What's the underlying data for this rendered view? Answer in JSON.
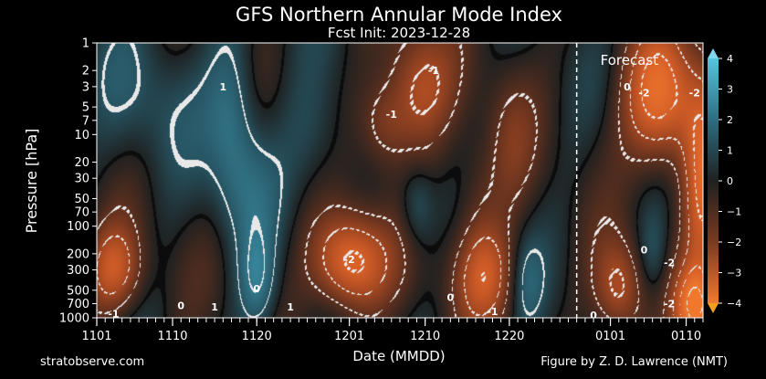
{
  "chart_data": {
    "type": "heatmap",
    "title": "GFS Northern Annular Mode Index",
    "subtitle": "Fcst Init: 2023-12-28",
    "xlabel": "Date (MMDD)",
    "ylabel": "Pressure [hPa]",
    "x_tick_labels": [
      "1101",
      "1110",
      "1120",
      "1201",
      "1210",
      "1220",
      "0101",
      "0110"
    ],
    "x_tick_dates": [
      "2023-11-01",
      "2023-11-10",
      "2023-11-20",
      "2023-12-01",
      "2023-12-10",
      "2023-12-20",
      "2024-01-01",
      "2024-01-10"
    ],
    "x_range": [
      "2023-11-01",
      "2024-01-12"
    ],
    "y_scale": "log",
    "y_inverted": true,
    "y_ticks": [
      1,
      2,
      3,
      5,
      7,
      10,
      20,
      30,
      50,
      70,
      100,
      200,
      300,
      500,
      700,
      1000
    ],
    "y_range": [
      1,
      1000
    ],
    "forecast_label": "Forecast",
    "forecast_date": "2023-12-28",
    "colorbar": {
      "ticks": [
        4,
        3,
        2,
        1,
        0,
        -1,
        -2,
        -3,
        -4
      ],
      "tick_labels": [
        "4",
        "3",
        "2",
        "1",
        "0",
        "−1",
        "−2",
        "−3",
        "−4"
      ],
      "range": [
        -4,
        4
      ],
      "colors": {
        "positive_strong": "#3ba3c4",
        "positive": "#2c6e80",
        "neutral": "#1f2020",
        "negative": "#7a3a20",
        "negative_strong": "#e26a2c"
      }
    },
    "contour_labels": [
      {
        "date": "2023-11-16",
        "p": 3,
        "text": "1"
      },
      {
        "date": "2023-12-11",
        "p": 2,
        "text": "-1"
      },
      {
        "date": "2023-12-06",
        "p": 6,
        "text": "-1"
      },
      {
        "date": "2024-01-03",
        "p": 3,
        "text": "0"
      },
      {
        "date": "2024-01-05",
        "p": 3.5,
        "text": "-2"
      },
      {
        "date": "2024-01-11",
        "p": 3.5,
        "text": "-2"
      },
      {
        "date": "2023-12-01",
        "p": 230,
        "text": "-2"
      },
      {
        "date": "2024-01-05",
        "p": 180,
        "text": "0"
      },
      {
        "date": "2024-01-08",
        "p": 250,
        "text": "-2"
      },
      {
        "date": "2023-11-20",
        "p": 480,
        "text": "0"
      },
      {
        "date": "2023-11-11",
        "p": 730,
        "text": "0"
      },
      {
        "date": "2023-11-15",
        "p": 760,
        "text": "1"
      },
      {
        "date": "2023-11-24",
        "p": 760,
        "text": "1"
      },
      {
        "date": "2023-11-03",
        "p": 900,
        "text": "-1"
      },
      {
        "date": "2023-12-13",
        "p": 600,
        "text": "0"
      },
      {
        "date": "2023-12-18",
        "p": 850,
        "text": "-1"
      },
      {
        "date": "2023-12-30",
        "p": 930,
        "text": "0"
      },
      {
        "date": "2024-01-08",
        "p": 700,
        "text": "-2"
      }
    ],
    "anomaly_blobs": [
      {
        "date": "2023-11-03",
        "p": 300,
        "v": -2.6,
        "sx": 3.5,
        "sy": 0.9
      },
      {
        "date": "2023-11-07",
        "p": 4,
        "v": 0.9,
        "sx": 6,
        "sy": 1.5
      },
      {
        "date": "2023-11-17",
        "p": 6,
        "v": 1.8,
        "sx": 3,
        "sy": 1.6
      },
      {
        "date": "2023-11-20",
        "p": 400,
        "v": 1.8,
        "sx": 2.2,
        "sy": 1.0
      },
      {
        "date": "2023-11-19",
        "p": 40,
        "v": 1.0,
        "sx": 4,
        "sy": 1.2
      },
      {
        "date": "2023-11-27",
        "p": 12,
        "v": 0.9,
        "sx": 4,
        "sy": 1.2
      },
      {
        "date": "2023-12-01",
        "p": 250,
        "v": -3.6,
        "sx": 4.5,
        "sy": 1.0
      },
      {
        "date": "2023-12-09",
        "p": 3,
        "v": -2.2,
        "sx": 4,
        "sy": 1.3
      },
      {
        "date": "2023-12-05",
        "p": 8,
        "v": -1.5,
        "sx": 3,
        "sy": 0.9
      },
      {
        "date": "2023-12-09",
        "p": 60,
        "v": 1.2,
        "sx": 2,
        "sy": 0.8
      },
      {
        "date": "2023-12-16",
        "p": 50,
        "v": -1.0,
        "sx": 3,
        "sy": 1.3
      },
      {
        "date": "2023-12-17",
        "p": 350,
        "v": -2.3,
        "sx": 4,
        "sy": 1.0
      },
      {
        "date": "2023-12-22",
        "p": 400,
        "v": 1.2,
        "sx": 2,
        "sy": 0.9
      },
      {
        "date": "2023-12-20",
        "p": 10,
        "v": -1.0,
        "sx": 3,
        "sy": 1.6
      },
      {
        "date": "2024-01-07",
        "p": 4,
        "v": -3.6,
        "sx": 4.5,
        "sy": 1.4
      },
      {
        "date": "2024-01-12",
        "p": 40,
        "v": -3.0,
        "sx": 2.5,
        "sy": 2.0
      },
      {
        "date": "2024-01-06",
        "p": 200,
        "v": 1.0,
        "sx": 1.8,
        "sy": 0.9
      },
      {
        "date": "2024-01-02",
        "p": 500,
        "v": -2.4,
        "sx": 3,
        "sy": 1.0
      },
      {
        "date": "2024-01-11",
        "p": 800,
        "v": -3.5,
        "sx": 2.5,
        "sy": 0.8
      }
    ]
  },
  "footer": {
    "left": "stratobserve.com",
    "right": "Figure by Z. D. Lawrence (NMT)"
  }
}
